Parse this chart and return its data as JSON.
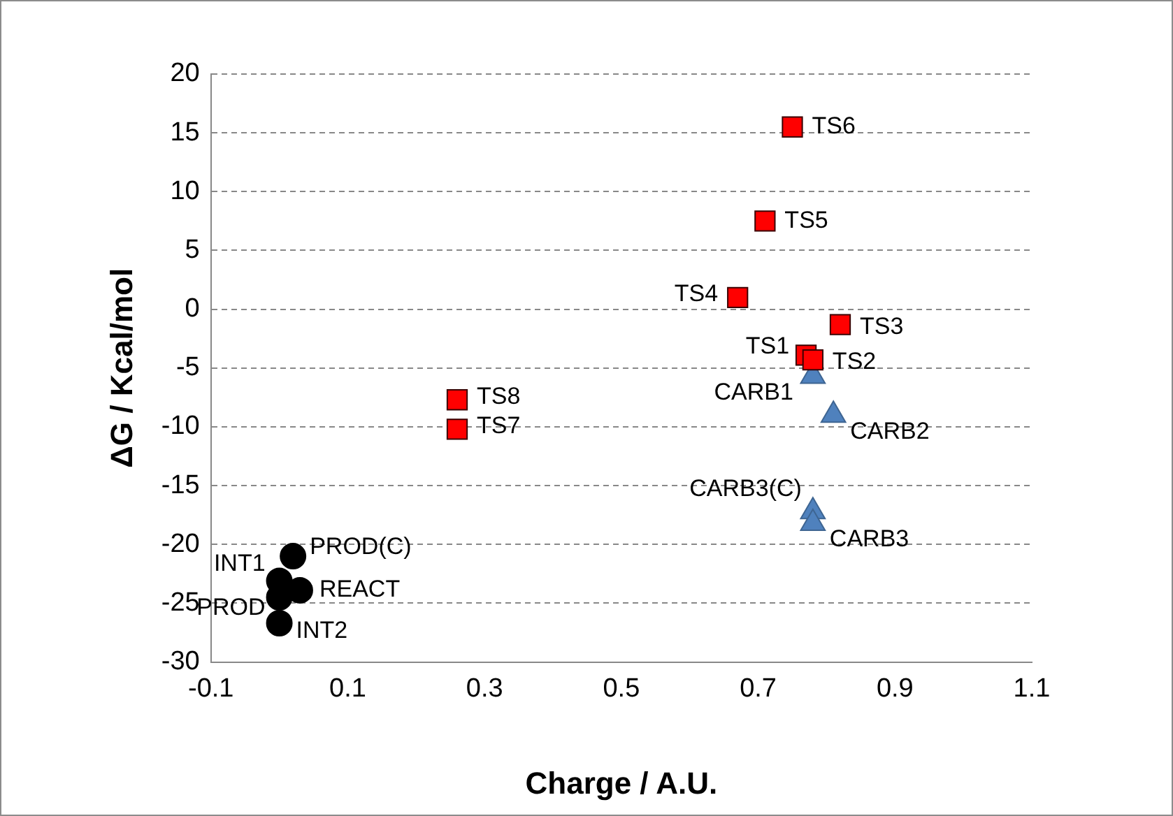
{
  "chart_data": {
    "type": "scatter",
    "xlabel": "Charge / A.U.",
    "ylabel": "ΔG / Kcal/mol",
    "xlim": [
      -0.1,
      1.1
    ],
    "xticks": [
      -0.1,
      0.1,
      0.3,
      0.5,
      0.7,
      0.9,
      1.1
    ],
    "ylim": [
      -30,
      20
    ],
    "yticks": [
      -30,
      -25,
      -20,
      -15,
      -10,
      -5,
      0,
      5,
      10,
      15,
      20
    ],
    "grid": "y",
    "legend": false,
    "series": [
      {
        "color": "#ff0000",
        "marker": "square",
        "x": [
          0.77,
          0.78,
          0.82,
          0.67,
          0.71,
          0.75,
          0.26,
          0.26
        ],
        "values": [
          -3.9,
          -4.3,
          -1.3,
          1,
          7.5,
          15.5,
          -10.2,
          -7.7
        ]
      },
      {
        "color": "#4f81bd",
        "marker": "triangle",
        "x": [
          0.78,
          0.81,
          0.78,
          0.78
        ],
        "values": [
          -5.7,
          -9,
          -17.2,
          -18.2
        ]
      },
      {
        "color": "#000000",
        "marker": "circle",
        "x": [
          0.03,
          0.0,
          0.0,
          0.0,
          0.02
        ],
        "values": [
          -23.9,
          -23.1,
          -26.7,
          -24.5,
          -21
        ]
      }
    ],
    "annotations": [
      {
        "text": "TS1",
        "x": 0.77,
        "y": -3.9
      },
      {
        "text": "TS2",
        "x": 0.78,
        "y": -4.3
      },
      {
        "text": "TS3",
        "x": 0.82,
        "y": -1.3
      },
      {
        "text": "TS4",
        "x": 0.67,
        "y": 1
      },
      {
        "text": "TS5",
        "x": 0.71,
        "y": 7.5
      },
      {
        "text": "TS6",
        "x": 0.75,
        "y": 15.5
      },
      {
        "text": "TS7",
        "x": 0.26,
        "y": -10.2
      },
      {
        "text": "TS8",
        "x": 0.26,
        "y": -7.7
      },
      {
        "text": "CARB1",
        "x": 0.78,
        "y": -5.7
      },
      {
        "text": "CARB2",
        "x": 0.81,
        "y": -9
      },
      {
        "text": "CARB3(C)",
        "x": 0.78,
        "y": -17.2
      },
      {
        "text": "CARB3",
        "x": 0.78,
        "y": -18.2
      },
      {
        "text": "REACT",
        "x": 0.03,
        "y": -23.9
      },
      {
        "text": "INT1",
        "x": 0.0,
        "y": -23.1
      },
      {
        "text": "INT2",
        "x": 0.0,
        "y": -26.7
      },
      {
        "text": "PROD",
        "x": 0.0,
        "y": -24.5
      },
      {
        "text": "PROD(C)",
        "x": 0.02,
        "y": -21
      }
    ]
  }
}
